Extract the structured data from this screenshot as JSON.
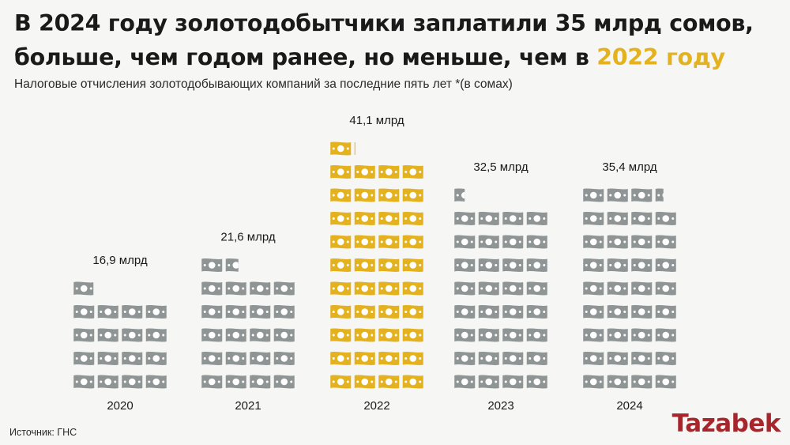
{
  "header": {
    "title_line1": "В 2024 году золотодобытчики заплатили 35 млрд сомов,",
    "title_line2_plain": "больше, чем годом ранее, но меньше, чем в ",
    "title_line2_highlight": "2022 году",
    "subtitle": "Налоговые отчисления золотодобывающих компаний за последние пять лет *(в сомах)"
  },
  "footer": {
    "source": "Источник: ГНС",
    "logo": "Tazabek"
  },
  "colors": {
    "gray_icon": "#8f9495",
    "gold_icon": "#e4b21f",
    "highlight": "#e4b21f",
    "logo": "#a8262b"
  },
  "icon_name": "banknote-icon",
  "chart_data": {
    "type": "bar",
    "categories": [
      "2020",
      "2021",
      "2022",
      "2023",
      "2024"
    ],
    "values": [
      16.9,
      21.6,
      41.1,
      32.5,
      35.4
    ],
    "value_labels": [
      "16,9 млрд",
      "21,6 млрд",
      "41,1 млрд",
      "32,5 млрд",
      "35,4 млрд"
    ],
    "highlight_category": "2022",
    "unit": "млрд сомов"
  }
}
